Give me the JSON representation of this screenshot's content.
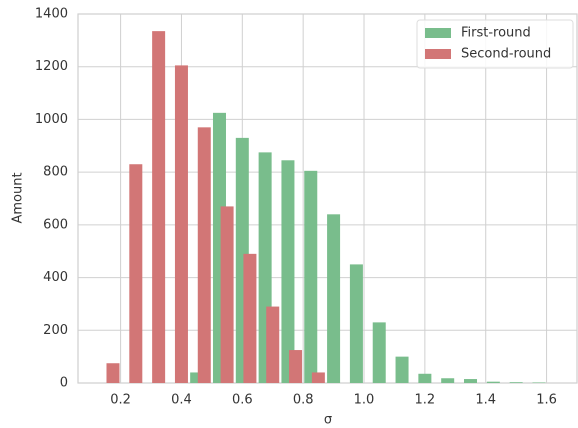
{
  "chart_data": {
    "type": "bar",
    "xlabel": "σ",
    "ylabel": "Amount",
    "xlim": [
      0.06,
      1.7
    ],
    "ylim": [
      0,
      1400
    ],
    "xticks": [
      0.2,
      0.4,
      0.6,
      0.8,
      {
        "value": 1,
        "label": "1.0"
      },
      1.2,
      1.4,
      1.6
    ],
    "yticks": [
      0,
      200,
      400,
      600,
      800,
      1000,
      1200,
      1400
    ],
    "grid": true,
    "legend": "upper right",
    "series": [
      {
        "name": "First-round",
        "color": "#79bd8c",
        "x": [
          0.45,
          0.525,
          0.6,
          0.675,
          0.75,
          0.825,
          0.9,
          0.975,
          1.05,
          1.125,
          1.2,
          1.275,
          1.35,
          1.425,
          1.5,
          1.575
        ],
        "values": [
          40,
          1025,
          930,
          875,
          845,
          805,
          640,
          450,
          230,
          100,
          35,
          18,
          15,
          5,
          3,
          2
        ]
      },
      {
        "name": "Second-round",
        "color": "#d27676",
        "x": [
          0.175,
          0.25,
          0.325,
          0.4,
          0.475,
          0.55,
          0.625,
          0.7,
          0.775,
          0.85
        ],
        "values": [
          75,
          830,
          1335,
          1205,
          970,
          670,
          490,
          290,
          125,
          40
        ]
      }
    ]
  }
}
